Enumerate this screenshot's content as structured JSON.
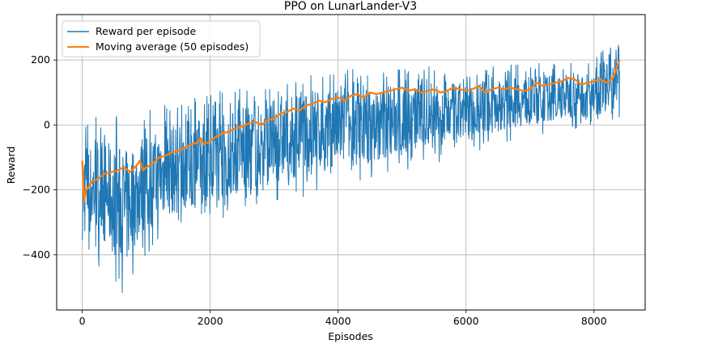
{
  "chart_data": {
    "type": "line",
    "title": "PPO on LunarLander-V3",
    "xlabel": "Episodes",
    "ylabel": "Reward",
    "xlim": [
      -400,
      8800
    ],
    "ylim": [
      -570,
      340
    ],
    "xticks": [
      0,
      2000,
      4000,
      6000,
      8000
    ],
    "yticks": [
      -400,
      -200,
      0,
      200
    ],
    "xtick_labels": [
      "0",
      "2000",
      "4000",
      "6000",
      "8000"
    ],
    "ytick_labels": [
      "−400",
      "−200",
      "0",
      "200"
    ],
    "grid": true,
    "legend_position": "upper-left",
    "series": [
      {
        "name": "Reward per episode",
        "color": "#1f77b4",
        "kind": "noisy-band",
        "x": [
          0,
          20,
          100,
          300,
          500,
          700,
          900,
          1200,
          1500,
          2000,
          2500,
          3000,
          3500,
          4000,
          4500,
          5000,
          5500,
          6000,
          6500,
          7000,
          7500,
          8000,
          8300,
          8400
        ],
        "upper": [
          -80,
          60,
          20,
          40,
          30,
          20,
          40,
          60,
          80,
          100,
          120,
          150,
          160,
          175,
          175,
          180,
          180,
          180,
          185,
          190,
          195,
          200,
          280,
          320
        ],
        "lower": [
          -460,
          -430,
          -420,
          -440,
          -500,
          -530,
          -420,
          -380,
          -340,
          -300,
          -280,
          -250,
          -220,
          -200,
          -180,
          -150,
          -120,
          -100,
          -60,
          -40,
          -20,
          -10,
          0,
          20
        ]
      },
      {
        "name": "Moving average (50 episodes)",
        "color": "#ff7f0e",
        "kind": "line",
        "x": [
          0,
          30,
          60,
          100,
          150,
          250,
          350,
          450,
          550,
          650,
          750,
          850,
          900,
          950,
          1000,
          1100,
          1200,
          1300,
          1400,
          1500,
          1600,
          1700,
          1800,
          1850,
          1900,
          2000,
          2100,
          2200,
          2300,
          2400,
          2500,
          2600,
          2700,
          2800,
          2900,
          3000,
          3100,
          3200,
          3300,
          3400,
          3500,
          3600,
          3700,
          3800,
          3900,
          4000,
          4100,
          4200,
          4300,
          4400,
          4500,
          4600,
          4700,
          4800,
          4900,
          5000,
          5100,
          5200,
          5300,
          5400,
          5500,
          5600,
          5700,
          5800,
          5900,
          6000,
          6100,
          6200,
          6300,
          6400,
          6500,
          6600,
          6700,
          6800,
          6900,
          7000,
          7100,
          7200,
          7300,
          7400,
          7500,
          7600,
          7700,
          7800,
          7900,
          8000,
          8100,
          8200,
          8300,
          8350,
          8400
        ],
        "y": [
          -110,
          -235,
          -200,
          -190,
          -175,
          -165,
          -150,
          -145,
          -140,
          -130,
          -145,
          -125,
          -110,
          -140,
          -130,
          -120,
          -100,
          -95,
          -85,
          -80,
          -70,
          -60,
          -55,
          -40,
          -60,
          -50,
          -35,
          -25,
          -20,
          -10,
          -5,
          5,
          10,
          0,
          15,
          20,
          35,
          40,
          50,
          45,
          60,
          65,
          75,
          70,
          80,
          85,
          75,
          90,
          95,
          85,
          100,
          95,
          100,
          105,
          110,
          115,
          105,
          110,
          100,
          105,
          110,
          100,
          105,
          115,
          110,
          105,
          110,
          120,
          100,
          110,
          115,
          110,
          115,
          110,
          105,
          110,
          130,
          120,
          125,
          130,
          135,
          145,
          140,
          125,
          130,
          135,
          140,
          130,
          145,
          175,
          200
        ]
      }
    ]
  }
}
